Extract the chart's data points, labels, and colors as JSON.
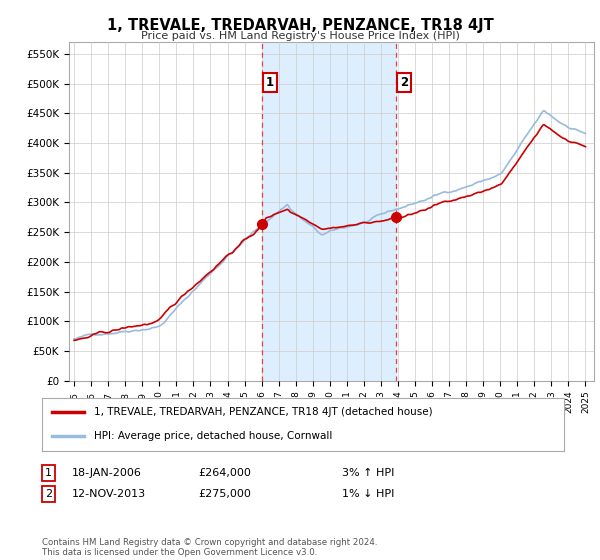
{
  "title": "1, TREVALE, TREDARVAH, PENZANCE, TR18 4JT",
  "subtitle": "Price paid vs. HM Land Registry's House Price Index (HPI)",
  "ylabel_ticks": [
    "£0",
    "£50K",
    "£100K",
    "£150K",
    "£200K",
    "£250K",
    "£300K",
    "£350K",
    "£400K",
    "£450K",
    "£500K",
    "£550K"
  ],
  "ytick_values": [
    0,
    50000,
    100000,
    150000,
    200000,
    250000,
    300000,
    350000,
    400000,
    450000,
    500000,
    550000
  ],
  "ylim": [
    0,
    570000
  ],
  "xlim_start": 1994.7,
  "xlim_end": 2025.5,
  "sale1_x": 2006.05,
  "sale1_y": 264000,
  "sale2_x": 2013.9,
  "sale2_y": 275000,
  "legend_line1": "1, TREVALE, TREDARVAH, PENZANCE, TR18 4JT (detached house)",
  "legend_line2": "HPI: Average price, detached house, Cornwall",
  "ann1_date": "18-JAN-2006",
  "ann1_price": "£264,000",
  "ann1_hpi": "3% ↑ HPI",
  "ann2_date": "12-NOV-2013",
  "ann2_price": "£275,000",
  "ann2_hpi": "1% ↓ HPI",
  "footer": "Contains HM Land Registry data © Crown copyright and database right 2024.\nThis data is licensed under the Open Government Licence v3.0.",
  "line_color_sale": "#cc0000",
  "line_color_hpi": "#99bbdd",
  "vline_color": "#dd4444",
  "shade_color": "#ddeeff",
  "grid_color": "#cccccc",
  "bg_color": "#ffffff"
}
